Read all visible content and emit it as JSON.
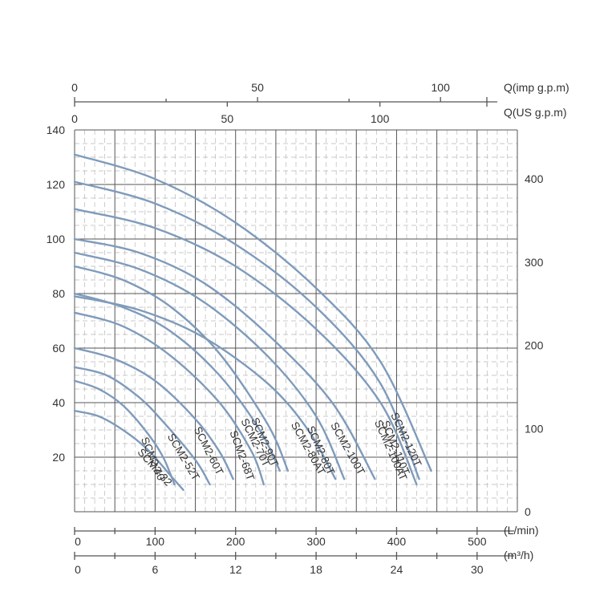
{
  "chart_data": {
    "type": "line",
    "title": "",
    "grid": true,
    "colors": {
      "curve": "#7f9bbb",
      "grid_major": "#555555",
      "grid_minor": "#b8b8b8"
    },
    "x_lmin": {
      "label": "(L/min)",
      "range": [
        0,
        550
      ],
      "ticks": [
        0,
        100,
        200,
        300,
        400,
        500
      ]
    },
    "x_m3h": {
      "label": "(m³/h)",
      "range": [
        0,
        33
      ],
      "ticks": [
        0,
        6,
        12,
        18,
        24,
        30
      ]
    },
    "x_imp_gpm": {
      "label": "Q(imp g.p.m)",
      "range": [
        0,
        121
      ],
      "ticks": [
        0,
        50,
        100
      ]
    },
    "x_us_gpm": {
      "label": "Q(US g.p.m)",
      "range": [
        0,
        145
      ],
      "ticks": [
        0,
        50,
        100
      ]
    },
    "y_m": {
      "label": "",
      "range": [
        0,
        140
      ],
      "ticks": [
        20,
        40,
        60,
        80,
        100,
        120,
        140
      ]
    },
    "y_ft": {
      "label": "",
      "range": [
        0,
        459
      ],
      "ticks": [
        0,
        100,
        200,
        300,
        400
      ]
    },
    "series": [
      {
        "name": "SCM2-32",
        "shutoff_head": 37,
        "x": [
          0,
          30,
          60,
          90,
          120,
          135
        ],
        "y": [
          37,
          35,
          30,
          23,
          13,
          8
        ]
      },
      {
        "name": "SCM2-40",
        "shutoff_head": 48,
        "x": [
          0,
          30,
          60,
          90,
          110,
          124
        ],
        "y": [
          48,
          45,
          39,
          29,
          20,
          10
        ]
      },
      {
        "name": "SCM2-52T",
        "shutoff_head": 53,
        "x": [
          0,
          40,
          80,
          110,
          150,
          168
        ],
        "y": [
          53,
          50,
          42,
          33,
          19,
          10
        ]
      },
      {
        "name": "SCM2-60T",
        "shutoff_head": 60,
        "x": [
          0,
          50,
          100,
          150,
          180,
          197
        ],
        "y": [
          60,
          56,
          48,
          34,
          22,
          12
        ]
      },
      {
        "name": "SCM2-68T",
        "shutoff_head": 73,
        "x": [
          0,
          60,
          120,
          180,
          220,
          235
        ],
        "y": [
          73,
          68,
          57,
          40,
          22,
          10
        ]
      },
      {
        "name": "SCM2-70T",
        "shutoff_head": 80,
        "x": [
          0,
          60,
          120,
          180,
          230,
          255
        ],
        "y": [
          80,
          75,
          66,
          50,
          30,
          15
        ]
      },
      {
        "name": "SCM2-90T",
        "shutoff_head": 90,
        "x": [
          0,
          60,
          120,
          180,
          240,
          265
        ],
        "y": [
          90,
          85,
          75,
          58,
          32,
          15
        ]
      },
      {
        "name": "SCM2-80AT",
        "shutoff_head": 79,
        "x": [
          0,
          80,
          160,
          240,
          290,
          324
        ],
        "y": [
          79,
          74,
          64,
          47,
          30,
          12
        ]
      },
      {
        "name": "SCM2-80T",
        "shutoff_head": 95,
        "x": [
          0,
          80,
          160,
          240,
          300,
          335
        ],
        "y": [
          95,
          89,
          77,
          57,
          35,
          12
        ]
      },
      {
        "name": "SCM2-100T",
        "shutoff_head": 100,
        "x": [
          0,
          80,
          160,
          240,
          320,
          373
        ],
        "y": [
          100,
          95,
          84,
          65,
          40,
          12
        ]
      },
      {
        "name": "SCM2-100AT",
        "shutoff_head": 111,
        "x": [
          0,
          100,
          200,
          300,
          380,
          425
        ],
        "y": [
          111,
          104,
          90,
          67,
          40,
          10
        ]
      },
      {
        "name": "SCM2-110T",
        "shutoff_head": 121,
        "x": [
          0,
          100,
          200,
          300,
          380,
          428
        ],
        "y": [
          121,
          113,
          98,
          75,
          47,
          12
        ]
      },
      {
        "name": "SCM2-120T",
        "shutoff_head": 131,
        "x": [
          0,
          100,
          200,
          300,
          380,
          443
        ],
        "y": [
          131,
          122,
          106,
          82,
          55,
          15
        ]
      }
    ]
  }
}
